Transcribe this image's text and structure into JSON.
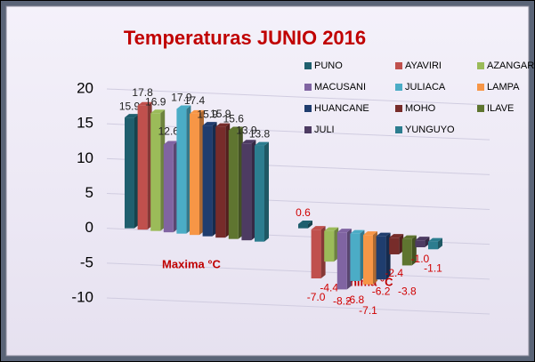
{
  "chart_data": {
    "type": "bar3d",
    "title": "Temperaturas JUNIO 2016",
    "categories": [
      "Maxima °C",
      "Minima °C"
    ],
    "series": [
      {
        "name": "PUNO",
        "color": "#1f5f6e",
        "values": [
          15.9,
          0.6
        ]
      },
      {
        "name": "AYAVIRI",
        "color": "#c0504d",
        "values": [
          17.8,
          -7.0
        ],
        "value_labels": [
          "17.8",
          "-7.0"
        ]
      },
      {
        "name": "AZANGARO",
        "color": "#9bbb59",
        "values": [
          16.9,
          -4.4
        ]
      },
      {
        "name": "MACUSANI",
        "color": "#8064a2",
        "values": [
          12.6,
          -8.2
        ]
      },
      {
        "name": "JULIACA",
        "color": "#4bacc6",
        "values": [
          17.9,
          -6.8
        ]
      },
      {
        "name": "LAMPA",
        "color": "#f79646",
        "values": [
          17.4,
          -7.1
        ]
      },
      {
        "name": "HUANCANE",
        "color": "#1f3d6e",
        "values": [
          15.9,
          -6.2
        ]
      },
      {
        "name": "MOHO",
        "color": "#772c2a",
        "values": [
          15.9,
          -2.4
        ]
      },
      {
        "name": "ILAVE",
        "color": "#5f7530",
        "values": [
          15.6,
          -3.8
        ]
      },
      {
        "name": "JULI",
        "color": "#4d3b62",
        "values": [
          13.9,
          -1.0
        ],
        "value_labels": [
          "13.9",
          "-1.0"
        ]
      },
      {
        "name": "YUNGUYO",
        "color": "#2c7d8f",
        "values": [
          13.8,
          -1.1
        ]
      }
    ],
    "ylim": [
      -10,
      20
    ],
    "yticks": [
      -10,
      -5,
      0,
      5,
      10,
      15,
      20
    ],
    "grid": true,
    "legend": "top-right"
  }
}
